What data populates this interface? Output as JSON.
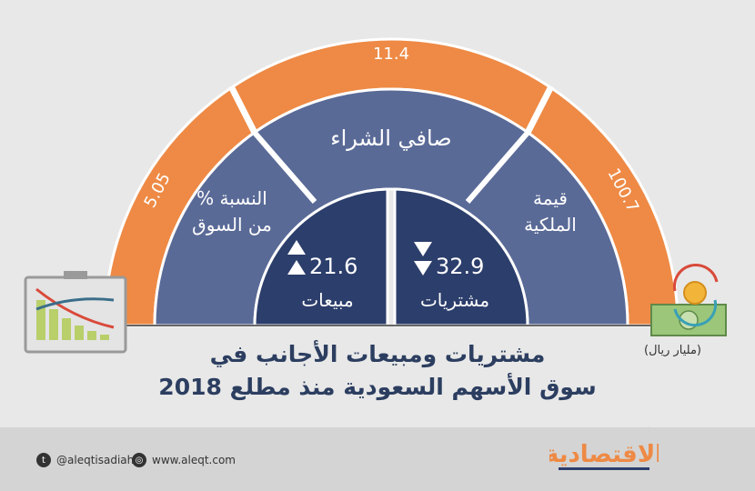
{
  "outer_ring": {
    "left_value": "5.05",
    "top_value": "11.4",
    "right_value": "100.7"
  },
  "middle_ring": {
    "left_label_line1": "النسبة %",
    "left_label_line2": "من السوق",
    "top_label": "صافي الشراء",
    "right_label_line1": "قيمة",
    "right_label_line2": "الملكية"
  },
  "inner": {
    "sales_value": "21.6",
    "sales_label": "مبيعات",
    "purchases_value": "32.9",
    "purchases_label": "مشتريات"
  },
  "title": {
    "line1": "مشتريات ومبيعات الأجانب في",
    "line2": "سوق الأسهم السعودية منذ مطلع 2018"
  },
  "unit": "(مليار ريال)",
  "footer": {
    "twitter": "@aleqtisadiah",
    "website": "www.aleqt.com",
    "logo_text": "الاقتصادية"
  },
  "colors": {
    "orange": "#ee8a45",
    "slate": "#5a6a97",
    "navy": "#2c3e6b",
    "background": "#e8e8e8"
  }
}
